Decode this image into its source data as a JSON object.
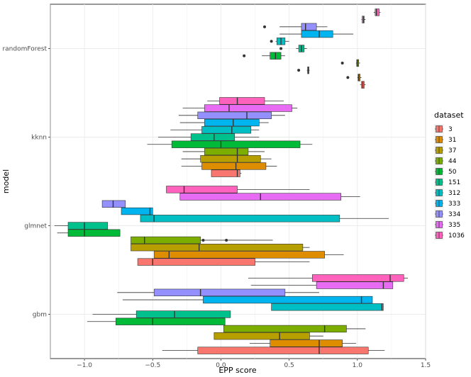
{
  "chart_data": {
    "type": "boxplot",
    "orientation": "horizontal",
    "xlabel": "EPP score",
    "ylabel": "model",
    "xlim": [
      -1.25,
      1.5
    ],
    "x_ticks": [
      -1.0,
      -0.5,
      0.0,
      0.5,
      1.0,
      1.5
    ],
    "x_tick_labels": [
      "−1.0",
      "−0.5",
      "0.0",
      "0.5",
      "1.0",
      "1.5"
    ],
    "categories": [
      "randomForest",
      "kknn",
      "glmnet",
      "gbm"
    ],
    "grid": true,
    "legend": {
      "title": "dataset",
      "position": "right",
      "entries": [
        {
          "label": "3",
          "color": "#F8766D"
        },
        {
          "label": "31",
          "color": "#DE8C00"
        },
        {
          "label": "37",
          "color": "#B79F00"
        },
        {
          "label": "44",
          "color": "#7CAE00"
        },
        {
          "label": "50",
          "color": "#00BA38"
        },
        {
          "label": "151",
          "color": "#00C08B"
        },
        {
          "label": "312",
          "color": "#00BFC4"
        },
        {
          "label": "333",
          "color": "#00B4F0"
        },
        {
          "label": "334",
          "color": "#9590FF"
        },
        {
          "label": "335",
          "color": "#E76BF3"
        },
        {
          "label": "1036",
          "color": "#FF62BC"
        }
      ]
    },
    "boxes": {
      "randomForest": [
        {
          "dataset": "3",
          "whisker_low": 1.02,
          "q1": 1.03,
          "median": 1.04,
          "q3": 1.05,
          "whisker_high": 1.06,
          "outliers": []
        },
        {
          "dataset": "31",
          "whisker_low": 1.0,
          "q1": 1.005,
          "median": 1.01,
          "q3": 1.02,
          "whisker_high": 1.03,
          "outliers": [
            0.93
          ]
        },
        {
          "dataset": "37",
          "whisker_low": 0.63,
          "q1": 0.635,
          "median": 0.64,
          "q3": 0.645,
          "whisker_high": 0.65,
          "outliers": [
            0.57
          ]
        },
        {
          "dataset": "44",
          "whisker_low": 0.99,
          "q1": 0.995,
          "median": 1.0,
          "q3": 1.01,
          "whisker_high": 1.02,
          "outliers": [
            0.89
          ]
        },
        {
          "dataset": "50",
          "whisker_low": 0.3,
          "q1": 0.36,
          "median": 0.4,
          "q3": 0.44,
          "whisker_high": 0.47,
          "outliers": [
            0.17
          ]
        },
        {
          "dataset": "151",
          "whisker_low": 0.55,
          "q1": 0.57,
          "median": 0.59,
          "q3": 0.61,
          "whisker_high": 0.63,
          "outliers": [
            0.44
          ]
        },
        {
          "dataset": "312",
          "whisker_low": 0.4,
          "q1": 0.41,
          "median": 0.44,
          "q3": 0.47,
          "whisker_high": 0.5,
          "outliers": [
            0.37
          ]
        },
        {
          "dataset": "333",
          "whisker_low": 0.43,
          "q1": 0.59,
          "median": 0.72,
          "q3": 0.82,
          "whisker_high": 0.97,
          "outliers": []
        },
        {
          "dataset": "334",
          "whisker_low": 0.43,
          "q1": 0.59,
          "median": 0.62,
          "q3": 0.7,
          "whisker_high": 0.78,
          "outliers": [
            0.32
          ]
        },
        {
          "dataset": "335",
          "whisker_low": 1.03,
          "q1": 1.035,
          "median": 1.045,
          "q3": 1.05,
          "whisker_high": 1.06,
          "outliers": []
        },
        {
          "dataset": "1036",
          "whisker_low": 1.12,
          "q1": 1.13,
          "median": 1.14,
          "q3": 1.16,
          "whisker_high": 1.17,
          "outliers": []
        }
      ],
      "kknn": [
        {
          "dataset": "3",
          "whisker_low": -0.07,
          "q1": -0.07,
          "median": 0.12,
          "q3": 0.14,
          "whisker_high": 0.15,
          "outliers": []
        },
        {
          "dataset": "31",
          "whisker_low": -0.29,
          "q1": -0.14,
          "median": 0.11,
          "q3": 0.33,
          "whisker_high": 0.41,
          "outliers": []
        },
        {
          "dataset": "37",
          "whisker_low": -0.29,
          "q1": -0.15,
          "median": 0.12,
          "q3": 0.29,
          "whisker_high": 0.37,
          "outliers": []
        },
        {
          "dataset": "44",
          "whisker_low": -0.28,
          "q1": -0.12,
          "median": 0.12,
          "q3": 0.2,
          "whisker_high": 0.32,
          "outliers": []
        },
        {
          "dataset": "50",
          "whisker_low": -0.54,
          "q1": -0.36,
          "median": 0.0,
          "q3": 0.58,
          "whisker_high": 0.67,
          "outliers": []
        },
        {
          "dataset": "151",
          "whisker_low": -0.46,
          "q1": -0.22,
          "median": -0.05,
          "q3": 0.1,
          "whisker_high": 0.28,
          "outliers": []
        },
        {
          "dataset": "312",
          "whisker_low": -0.37,
          "q1": -0.14,
          "median": 0.08,
          "q3": 0.22,
          "whisker_high": 0.28,
          "outliers": []
        },
        {
          "dataset": "333",
          "whisker_low": -0.3,
          "q1": -0.12,
          "median": 0.09,
          "q3": 0.28,
          "whisker_high": 0.35,
          "outliers": []
        },
        {
          "dataset": "334",
          "whisker_low": -0.31,
          "q1": -0.17,
          "median": 0.19,
          "q3": 0.37,
          "whisker_high": 0.47,
          "outliers": []
        },
        {
          "dataset": "335",
          "whisker_low": -0.28,
          "q1": -0.12,
          "median": 0.06,
          "q3": 0.52,
          "whisker_high": 0.56,
          "outliers": []
        },
        {
          "dataset": "1036",
          "whisker_low": -0.1,
          "q1": -0.01,
          "median": 0.12,
          "q3": 0.32,
          "whisker_high": 0.46,
          "outliers": []
        }
      ],
      "glmnet": [
        {
          "dataset": "3",
          "whisker_low": -0.61,
          "q1": -0.61,
          "median": -0.5,
          "q3": 0.25,
          "whisker_high": 0.65,
          "outliers": []
        },
        {
          "dataset": "31",
          "whisker_low": -0.49,
          "q1": -0.49,
          "median": -0.38,
          "q3": 0.76,
          "whisker_high": 0.9,
          "outliers": []
        },
        {
          "dataset": "37",
          "whisker_low": -0.66,
          "q1": -0.66,
          "median": -0.16,
          "q3": 0.6,
          "whisker_high": 0.65,
          "outliers": []
        },
        {
          "dataset": "44",
          "whisker_low": -0.66,
          "q1": -0.66,
          "median": -0.56,
          "q3": -0.15,
          "whisker_high": 0.38,
          "outliers": [
            -0.13,
            0.04
          ]
        },
        {
          "dataset": "50",
          "whisker_low": -1.2,
          "q1": -1.12,
          "median": -1.0,
          "q3": -0.74,
          "whisker_high": -0.74,
          "outliers": []
        },
        {
          "dataset": "151",
          "whisker_low": -1.22,
          "q1": -1.12,
          "median": -1.0,
          "q3": -0.83,
          "whisker_high": -0.83,
          "outliers": []
        },
        {
          "dataset": "312",
          "whisker_low": -0.59,
          "q1": -0.59,
          "median": -0.49,
          "q3": 0.87,
          "whisker_high": 1.23,
          "outliers": []
        },
        {
          "dataset": "333",
          "whisker_low": -0.73,
          "q1": -0.73,
          "median": -0.52,
          "q3": -0.5,
          "whisker_high": -0.5,
          "outliers": []
        },
        {
          "dataset": "334",
          "whisker_low": -0.87,
          "q1": -0.87,
          "median": -0.79,
          "q3": -0.7,
          "whisker_high": -0.7,
          "outliers": []
        },
        {
          "dataset": "335",
          "whisker_low": -0.3,
          "q1": -0.3,
          "median": 0.29,
          "q3": 0.88,
          "whisker_high": 1.02,
          "outliers": []
        },
        {
          "dataset": "1036",
          "whisker_low": -0.4,
          "q1": -0.4,
          "median": -0.27,
          "q3": 0.12,
          "whisker_high": 0.65,
          "outliers": []
        }
      ],
      "gbm": [
        {
          "dataset": "3",
          "whisker_low": -0.43,
          "q1": -0.17,
          "median": 0.72,
          "q3": 1.08,
          "whisker_high": 1.2,
          "outliers": []
        },
        {
          "dataset": "31",
          "whisker_low": 0.21,
          "q1": 0.36,
          "median": 0.72,
          "q3": 0.89,
          "whisker_high": 0.99,
          "outliers": []
        },
        {
          "dataset": "37",
          "whisker_low": -0.05,
          "q1": -0.05,
          "median": 0.43,
          "q3": 0.65,
          "whisker_high": 0.75,
          "outliers": []
        },
        {
          "dataset": "44",
          "whisker_low": 0.02,
          "q1": 0.02,
          "median": 0.76,
          "q3": 0.92,
          "whisker_high": 1.06,
          "outliers": []
        },
        {
          "dataset": "50",
          "whisker_low": -0.98,
          "q1": -0.77,
          "median": -0.5,
          "q3": 0.03,
          "whisker_high": 0.03,
          "outliers": []
        },
        {
          "dataset": "151",
          "whisker_low": -0.94,
          "q1": -0.62,
          "median": -0.34,
          "q3": 0.07,
          "whisker_high": 0.07,
          "outliers": []
        },
        {
          "dataset": "312",
          "whisker_low": 0.37,
          "q1": 0.37,
          "median": 1.18,
          "q3": 1.19,
          "whisker_high": 1.19,
          "outliers": []
        },
        {
          "dataset": "333",
          "whisker_low": -0.72,
          "q1": -0.13,
          "median": 1.03,
          "q3": 1.11,
          "whisker_high": 1.11,
          "outliers": []
        },
        {
          "dataset": "334",
          "whisker_low": -0.76,
          "q1": -0.49,
          "median": -0.15,
          "q3": 0.47,
          "whisker_high": 0.72,
          "outliers": []
        },
        {
          "dataset": "335",
          "whisker_low": 0.22,
          "q1": 0.7,
          "median": 1.19,
          "q3": 1.26,
          "whisker_high": 1.26,
          "outliers": []
        },
        {
          "dataset": "1036",
          "whisker_low": 0.2,
          "q1": 0.67,
          "median": 1.24,
          "q3": 1.34,
          "whisker_high": 1.37,
          "outliers": []
        }
      ]
    }
  }
}
